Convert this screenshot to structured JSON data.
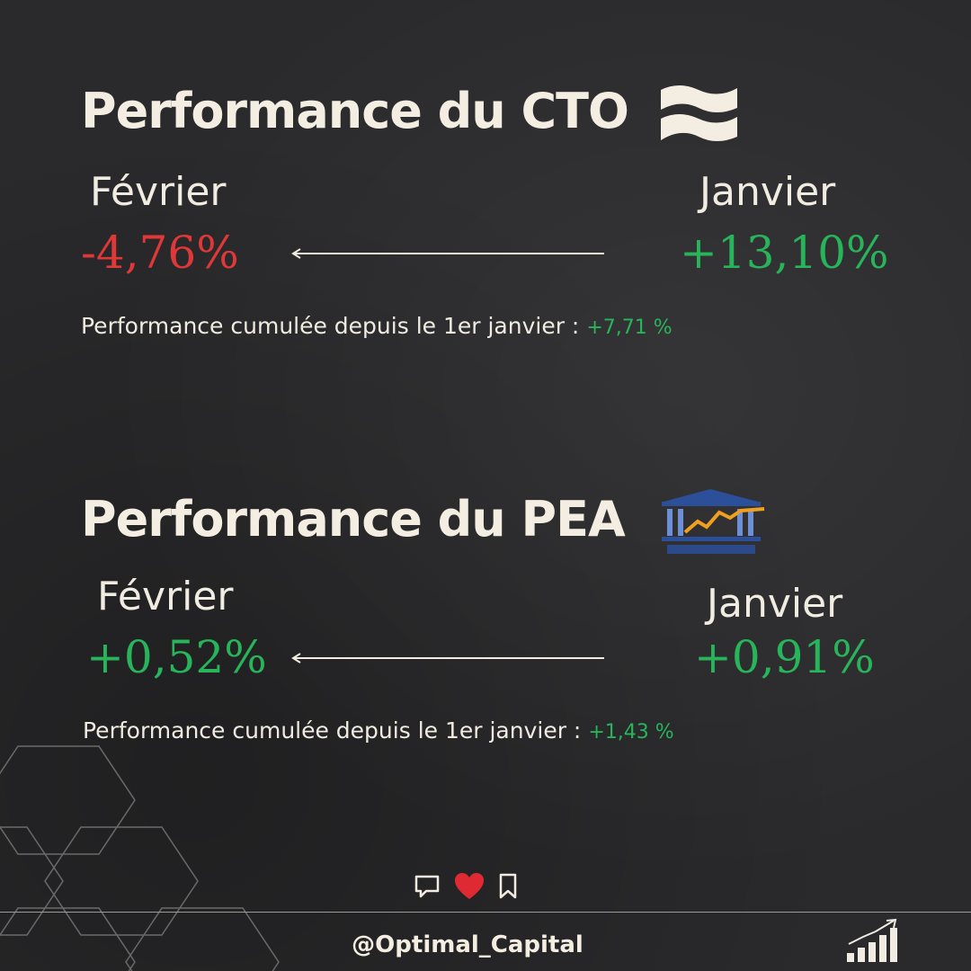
{
  "colors": {
    "red": "#e03838",
    "green": "#28b45a",
    "text": "#f1ece2"
  },
  "cto": {
    "title": "Performance du CTO",
    "logo_icon": "flag-wave-icon",
    "feb_label": "Février",
    "feb_value": "-4,76%",
    "jan_label": "Janvier",
    "jan_value": "+13,10%",
    "summary_text": "Performance cumulée depuis le 1er janvier :",
    "summary_value": "+7,71 %"
  },
  "pea": {
    "title": "Performance du PEA",
    "logo_icon": "bank-temple-icon",
    "feb_label": "Février",
    "feb_value": "+0,52%",
    "jan_label": "Janvier",
    "jan_value": "+0,91%",
    "summary_text": "Performance cumulée depuis le 1er janvier :",
    "summary_value": "+1,43 %"
  },
  "footer": {
    "handle": "@Optimal_Capital",
    "icons": [
      "comment-icon",
      "heart-icon",
      "bookmark-icon"
    ],
    "brand_icon": "growth-bars-icon"
  }
}
